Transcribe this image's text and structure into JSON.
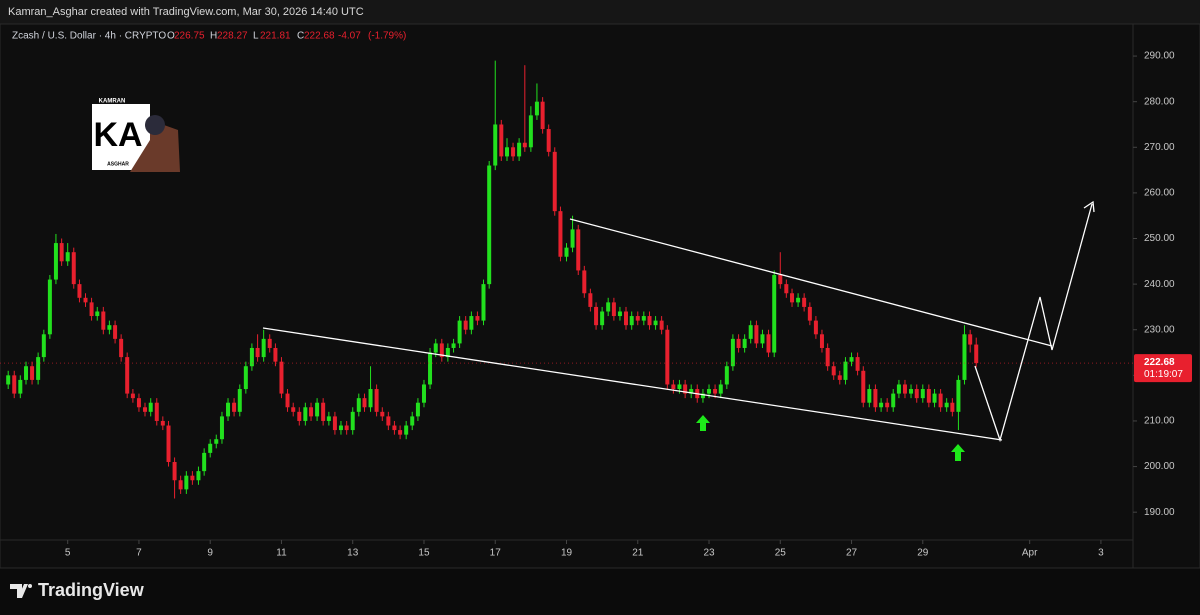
{
  "header": "Kamran_Asghar created with TradingView.com, Mar 30, 2026 14:40 UTC",
  "footer_logo": "TradingView",
  "watermark": {
    "top": "KAMRAN",
    "mark": "KA",
    "bottom": "ASGHAR"
  },
  "chart_data": {
    "type": "candlestick",
    "title": "Zcash / U.S. Dollar · 4h · CRYPTO",
    "ohlc_prefixes": [
      "O",
      "H",
      "L",
      "C"
    ],
    "change": -4.07,
    "change_percent": {
      "value": -1.79,
      "label": "(-1.79%)"
    },
    "countdown": "01:19:07",
    "up_color": "#22e01e",
    "down_color": "#e8202e",
    "grid": false,
    "x": [
      3.33,
      3.5,
      3.67,
      3.83,
      4,
      4.17,
      4.33,
      4.5,
      4.67,
      4.83,
      5,
      5.17,
      5.33,
      5.5,
      5.67,
      5.83,
      6,
      6.17,
      6.33,
      6.5,
      6.67,
      6.83,
      7,
      7.17,
      7.33,
      7.5,
      7.67,
      7.83,
      8,
      8.17,
      8.33,
      8.5,
      8.67,
      8.83,
      9,
      9.17,
      9.33,
      9.5,
      9.67,
      9.83,
      10,
      10.17,
      10.33,
      10.5,
      10.67,
      10.83,
      11,
      11.17,
      11.33,
      11.5,
      11.67,
      11.83,
      12,
      12.17,
      12.33,
      12.5,
      12.67,
      12.83,
      13,
      13.17,
      13.33,
      13.5,
      13.67,
      13.83,
      14,
      14.17,
      14.33,
      14.5,
      14.67,
      14.83,
      15,
      15.17,
      15.33,
      15.5,
      15.67,
      15.83,
      16,
      16.17,
      16.33,
      16.5,
      16.67,
      16.83,
      17,
      17.17,
      17.33,
      17.5,
      17.67,
      17.83,
      18,
      18.17,
      18.33,
      18.5,
      18.67,
      18.83,
      19,
      19.17,
      19.33,
      19.5,
      19.67,
      19.83,
      20,
      20.17,
      20.33,
      20.5,
      20.67,
      20.83,
      21,
      21.17,
      21.33,
      21.5,
      21.67,
      21.83,
      22,
      22.17,
      22.33,
      22.5,
      22.67,
      22.83,
      23,
      23.17,
      23.33,
      23.5,
      23.67,
      23.83,
      24,
      24.17,
      24.33,
      24.5,
      24.67,
      24.83,
      25,
      25.17,
      25.33,
      25.5,
      25.67,
      25.83,
      26,
      26.17,
      26.33,
      26.5,
      26.67,
      26.83,
      27,
      27.17,
      27.33,
      27.5,
      27.67,
      27.83,
      28,
      28.17,
      28.33,
      28.5,
      28.67,
      28.83,
      29,
      29.17,
      29.33,
      29.5,
      29.67,
      29.83,
      30,
      30.17,
      30.33,
      30.5
    ],
    "open": [
      218,
      220,
      216,
      219,
      222,
      219,
      224,
      229,
      241,
      249,
      245,
      247,
      240,
      237,
      236,
      233,
      234,
      230,
      231,
      228,
      224,
      216,
      215,
      213,
      212,
      214,
      210,
      209,
      201,
      197,
      195,
      198,
      197,
      199,
      203,
      205,
      206,
      211,
      214,
      212,
      217,
      222,
      226,
      224,
      228,
      226,
      223,
      216,
      213,
      212,
      210,
      213,
      211,
      214,
      210,
      211,
      208,
      209,
      208,
      212,
      215,
      213,
      217,
      212,
      211,
      209,
      208,
      207,
      209,
      211,
      214,
      218,
      225,
      227,
      224,
      226,
      227,
      232,
      230,
      233,
      232,
      240,
      266,
      275,
      268,
      270,
      268,
      271,
      270,
      277,
      280,
      274,
      269,
      256,
      246,
      248,
      252,
      243,
      238,
      235,
      231,
      234,
      236,
      233,
      234,
      231,
      233,
      232,
      233,
      231,
      232,
      230,
      218,
      217,
      218,
      216,
      217,
      215,
      216,
      217,
      216,
      218,
      222,
      228,
      226,
      228,
      231,
      227,
      229,
      225,
      242,
      240,
      238,
      236,
      237,
      235,
      232,
      229,
      226,
      222,
      220,
      219,
      223,
      224,
      221,
      214,
      217,
      213,
      214,
      213,
      216,
      218,
      216,
      217,
      215,
      217,
      214,
      216,
      213,
      214,
      212,
      219,
      229,
      226.75
    ],
    "high": [
      221,
      221,
      220,
      223,
      223,
      225,
      230,
      242,
      251,
      250,
      249,
      248,
      241,
      238,
      237,
      235,
      235,
      232,
      232,
      229,
      225,
      217,
      216,
      214,
      215,
      215,
      211,
      210,
      202,
      198,
      199,
      199,
      200,
      204,
      206,
      207,
      212,
      215,
      215,
      218,
      223,
      227,
      229,
      230,
      229,
      227,
      224,
      217,
      214,
      213,
      214,
      214,
      215,
      215,
      212,
      212,
      210,
      210,
      213,
      216,
      216,
      222,
      218,
      213,
      212,
      210,
      209,
      210,
      212,
      215,
      219,
      226,
      228,
      228,
      227,
      228,
      233,
      233,
      234,
      234,
      241,
      267,
      289,
      276,
      272,
      271,
      272,
      288,
      279,
      284,
      281,
      275,
      270,
      257,
      249,
      255,
      253,
      244,
      239,
      236,
      235,
      237,
      237,
      235,
      235,
      234,
      234,
      234,
      234,
      233,
      233,
      231,
      219,
      219,
      219,
      218,
      218,
      217,
      218,
      218,
      219,
      223,
      229,
      229,
      229,
      232,
      232,
      230,
      230,
      243,
      247,
      241,
      239,
      238,
      238,
      236,
      233,
      230,
      227,
      223,
      221,
      224,
      225,
      225,
      222,
      218,
      218,
      215,
      215,
      217,
      219,
      219,
      218,
      218,
      218,
      218,
      217,
      217,
      215,
      215,
      220,
      231,
      230,
      228.27
    ],
    "low": [
      217,
      215,
      215,
      218,
      218,
      218,
      223,
      228,
      240,
      244,
      244,
      239,
      236,
      235,
      232,
      232,
      229,
      229,
      227,
      223,
      215,
      214,
      212,
      211,
      211,
      209,
      208,
      200,
      193,
      194,
      194,
      196,
      196,
      198,
      202,
      204,
      205,
      210,
      211,
      211,
      216,
      221,
      223,
      223,
      225,
      222,
      215,
      212,
      211,
      209,
      209,
      210,
      210,
      209,
      209,
      207,
      207,
      207,
      207,
      211,
      212,
      212,
      211,
      210,
      208,
      207,
      206,
      206,
      208,
      210,
      213,
      217,
      224,
      223,
      223,
      225,
      226,
      229,
      229,
      231,
      231,
      239,
      265,
      267,
      267,
      267,
      267,
      269,
      269,
      276,
      273,
      268,
      255,
      245,
      245,
      247,
      242,
      237,
      234,
      230,
      230,
      233,
      232,
      232,
      230,
      230,
      231,
      231,
      230,
      230,
      229,
      217,
      216,
      216,
      215,
      215,
      214,
      214,
      215,
      215,
      215,
      217,
      221,
      225,
      225,
      227,
      226,
      226,
      224,
      224,
      239,
      237,
      235,
      235,
      234,
      231,
      228,
      225,
      221,
      219,
      218,
      218,
      222,
      220,
      213,
      213,
      212,
      212,
      212,
      212,
      215,
      215,
      215,
      214,
      214,
      213,
      213,
      212,
      212,
      211,
      208,
      218,
      225,
      221.81
    ],
    "close": [
      220,
      216,
      219,
      222,
      219,
      224,
      229,
      241,
      249,
      245,
      247,
      240,
      237,
      236,
      233,
      234,
      230,
      231,
      228,
      224,
      216,
      215,
      213,
      212,
      214,
      210,
      209,
      201,
      197,
      195,
      198,
      197,
      199,
      203,
      205,
      206,
      211,
      214,
      212,
      217,
      222,
      226,
      224,
      228,
      226,
      223,
      216,
      213,
      212,
      210,
      213,
      211,
      214,
      210,
      211,
      208,
      209,
      208,
      212,
      215,
      213,
      217,
      212,
      211,
      209,
      208,
      207,
      209,
      211,
      214,
      218,
      225,
      227,
      224,
      226,
      227,
      232,
      230,
      233,
      232,
      240,
      266,
      275,
      268,
      270,
      268,
      271,
      270,
      277,
      280,
      274,
      269,
      256,
      246,
      248,
      252,
      243,
      238,
      235,
      231,
      234,
      236,
      233,
      234,
      231,
      233,
      232,
      233,
      231,
      232,
      230,
      218,
      217,
      218,
      216,
      217,
      215,
      216,
      217,
      216,
      218,
      222,
      228,
      226,
      228,
      231,
      227,
      229,
      225,
      242,
      240,
      238,
      236,
      237,
      235,
      232,
      229,
      226,
      222,
      220,
      219,
      223,
      224,
      221,
      214,
      217,
      213,
      214,
      213,
      216,
      218,
      216,
      217,
      215,
      217,
      214,
      216,
      213,
      214,
      212,
      219,
      229,
      226.75,
      222.68
    ],
    "xlim": [
      3.1,
      34.9
    ],
    "xticks": [
      5,
      7,
      9,
      11,
      13,
      15,
      17,
      19,
      21,
      23,
      25,
      27,
      29,
      {
        "value": 32,
        "label": "Apr"
      },
      {
        "value": 34,
        "label": "3"
      }
    ],
    "ylim": [
      183.9,
      294.4
    ],
    "yticks": [
      {
        "value": 190,
        "label": "190.00"
      },
      {
        "value": 200,
        "label": "200.00"
      },
      {
        "value": 210,
        "label": "210.00"
      },
      {
        "value": 220,
        "label": "220.00"
      },
      {
        "value": 230,
        "label": "230.00"
      },
      {
        "value": 240,
        "label": "240.00"
      },
      {
        "value": 250,
        "label": "250.00"
      },
      {
        "value": 260,
        "label": "260.00"
      },
      {
        "value": 270,
        "label": "270.00"
      },
      {
        "value": 280,
        "label": "280.00"
      },
      {
        "value": 290,
        "label": "290.00"
      }
    ]
  }
}
